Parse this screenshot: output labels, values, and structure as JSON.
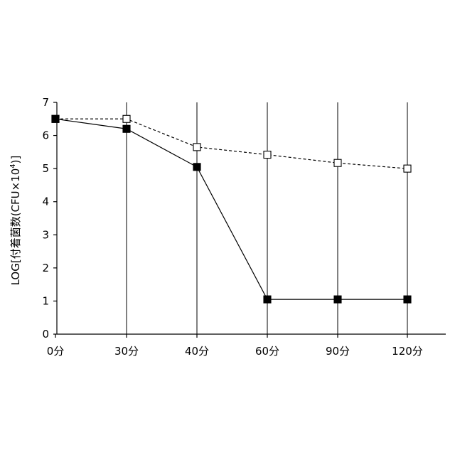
{
  "chart_data": {
    "type": "line",
    "categories": [
      "0分",
      "30分",
      "40分",
      "60分",
      "90分",
      "120分"
    ],
    "ylabel_base": "LOG[付着菌数(CFU×10",
    "ylabel_sup": "4",
    "ylabel_end": ")]",
    "ylim": [
      0,
      7
    ],
    "yticks": [
      0,
      1,
      2,
      3,
      4,
      5,
      6,
      7
    ],
    "grid": "vertical",
    "series": [
      {
        "marker": "open-square",
        "line": "dashed",
        "color": "#000000",
        "values": [
          6.5,
          6.5,
          5.65,
          5.42,
          5.17,
          5.0
        ]
      },
      {
        "marker": "filled-square",
        "line": "solid",
        "color": "#000000",
        "values": [
          6.5,
          6.2,
          5.05,
          1.05,
          1.05,
          1.05
        ]
      }
    ]
  }
}
